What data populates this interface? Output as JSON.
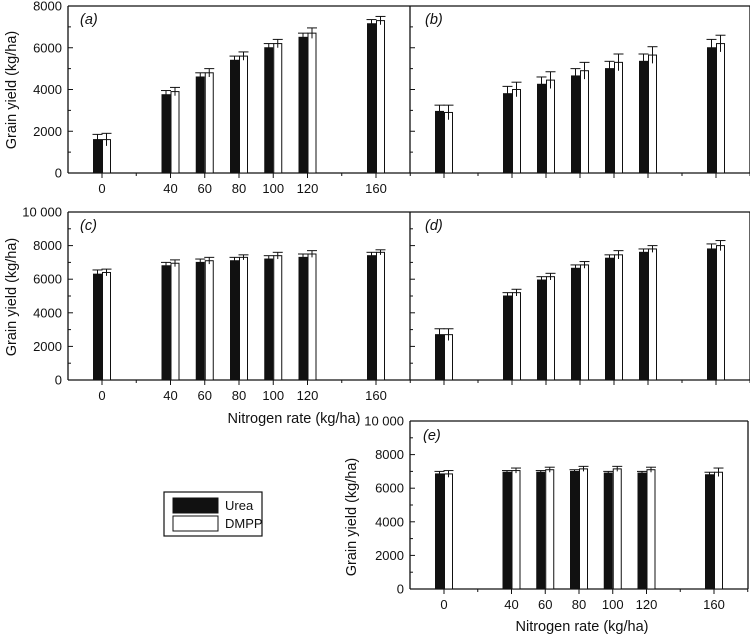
{
  "colors": {
    "urea": "#111111",
    "dmpp": "#ffffff",
    "stroke": "#111111"
  },
  "legend": {
    "items": [
      {
        "label": "Urea",
        "color": "#111111"
      },
      {
        "label": "DMPP",
        "color": "#ffffff"
      }
    ]
  },
  "axis_text": {
    "ylabel": "Grain yield (kg/ha)",
    "xlabel": "Nitrogen rate (kg/ha)"
  },
  "chart_data": [
    {
      "type": "bar",
      "panel": "(a)",
      "categories": [
        "0",
        "40",
        "60",
        "80",
        "100",
        "120",
        "160"
      ],
      "ylim": [
        0,
        8000
      ],
      "yticks": [
        "0",
        "2000",
        "4000",
        "6000",
        "8000"
      ],
      "ylabel": "Grain yield (kg/ha)",
      "xlabel": "",
      "series": [
        {
          "name": "Urea",
          "values": [
            1600,
            3750,
            4600,
            5400,
            6000,
            6500,
            7150
          ],
          "errors": [
            250,
            200,
            200,
            200,
            200,
            200,
            200
          ]
        },
        {
          "name": "DMPP",
          "values": [
            1600,
            3900,
            4800,
            5600,
            6200,
            6700,
            7300
          ],
          "errors": [
            300,
            200,
            200,
            200,
            200,
            250,
            200
          ]
        }
      ]
    },
    {
      "type": "bar",
      "panel": "(b)",
      "categories": [
        "0",
        "40",
        "60",
        "80",
        "100",
        "120",
        "160"
      ],
      "ylim": [
        0,
        8000
      ],
      "yticks": [],
      "ylabel": "",
      "xlabel": "",
      "series": [
        {
          "name": "Urea",
          "values": [
            2950,
            3800,
            4250,
            4650,
            5000,
            5350,
            6000
          ],
          "errors": [
            300,
            350,
            350,
            350,
            350,
            350,
            400
          ]
        },
        {
          "name": "DMPP",
          "values": [
            2900,
            4000,
            4450,
            4900,
            5300,
            5650,
            6200
          ],
          "errors": [
            350,
            350,
            400,
            400,
            400,
            400,
            400
          ]
        }
      ]
    },
    {
      "type": "bar",
      "panel": "(c)",
      "categories": [
        "0",
        "40",
        "60",
        "80",
        "100",
        "120",
        "160"
      ],
      "ylim": [
        0,
        10000
      ],
      "yticks": [
        "0",
        "2000",
        "4000",
        "6000",
        "8000",
        "10 000"
      ],
      "ylabel": "Grain yield (kg/ha)",
      "xlabel": "Nitrogen rate (kg/ha)",
      "series": [
        {
          "name": "Urea",
          "values": [
            6300,
            6800,
            7000,
            7100,
            7200,
            7300,
            7400
          ],
          "errors": [
            250,
            200,
            200,
            200,
            200,
            200,
            200
          ]
        },
        {
          "name": "DMPP",
          "values": [
            6400,
            6950,
            7100,
            7300,
            7400,
            7500,
            7600
          ],
          "errors": [
            200,
            200,
            200,
            150,
            200,
            200,
            150
          ]
        }
      ]
    },
    {
      "type": "bar",
      "panel": "(d)",
      "categories": [
        "0",
        "40",
        "60",
        "80",
        "100",
        "120",
        "160"
      ],
      "ylim": [
        0,
        10000
      ],
      "yticks": [],
      "ylabel": "",
      "xlabel": "",
      "series": [
        {
          "name": "Urea",
          "values": [
            2700,
            5000,
            5950,
            6650,
            7250,
            7600,
            7800
          ],
          "errors": [
            350,
            200,
            200,
            200,
            200,
            200,
            300
          ]
        },
        {
          "name": "DMPP",
          "values": [
            2700,
            5200,
            6150,
            6850,
            7450,
            7800,
            8000
          ],
          "errors": [
            350,
            200,
            200,
            200,
            250,
            200,
            300
          ]
        }
      ]
    },
    {
      "type": "bar",
      "panel": "(e)",
      "categories": [
        "0",
        "40",
        "60",
        "80",
        "100",
        "120",
        "160"
      ],
      "ylim": [
        0,
        10000
      ],
      "yticks": [
        "0",
        "2000",
        "4000",
        "6000",
        "8000",
        "10 000"
      ],
      "ylabel": "Grain yield (kg/ha)",
      "xlabel": "Nitrogen rate (kg/ha)",
      "series": [
        {
          "name": "Urea",
          "values": [
            6850,
            6950,
            6950,
            7000,
            6900,
            6900,
            6800
          ],
          "errors": [
            150,
            100,
            100,
            100,
            100,
            100,
            150
          ]
        },
        {
          "name": "DMPP",
          "values": [
            6850,
            7050,
            7100,
            7150,
            7150,
            7100,
            6950
          ],
          "errors": [
            200,
            150,
            150,
            150,
            150,
            150,
            250
          ]
        }
      ]
    }
  ]
}
